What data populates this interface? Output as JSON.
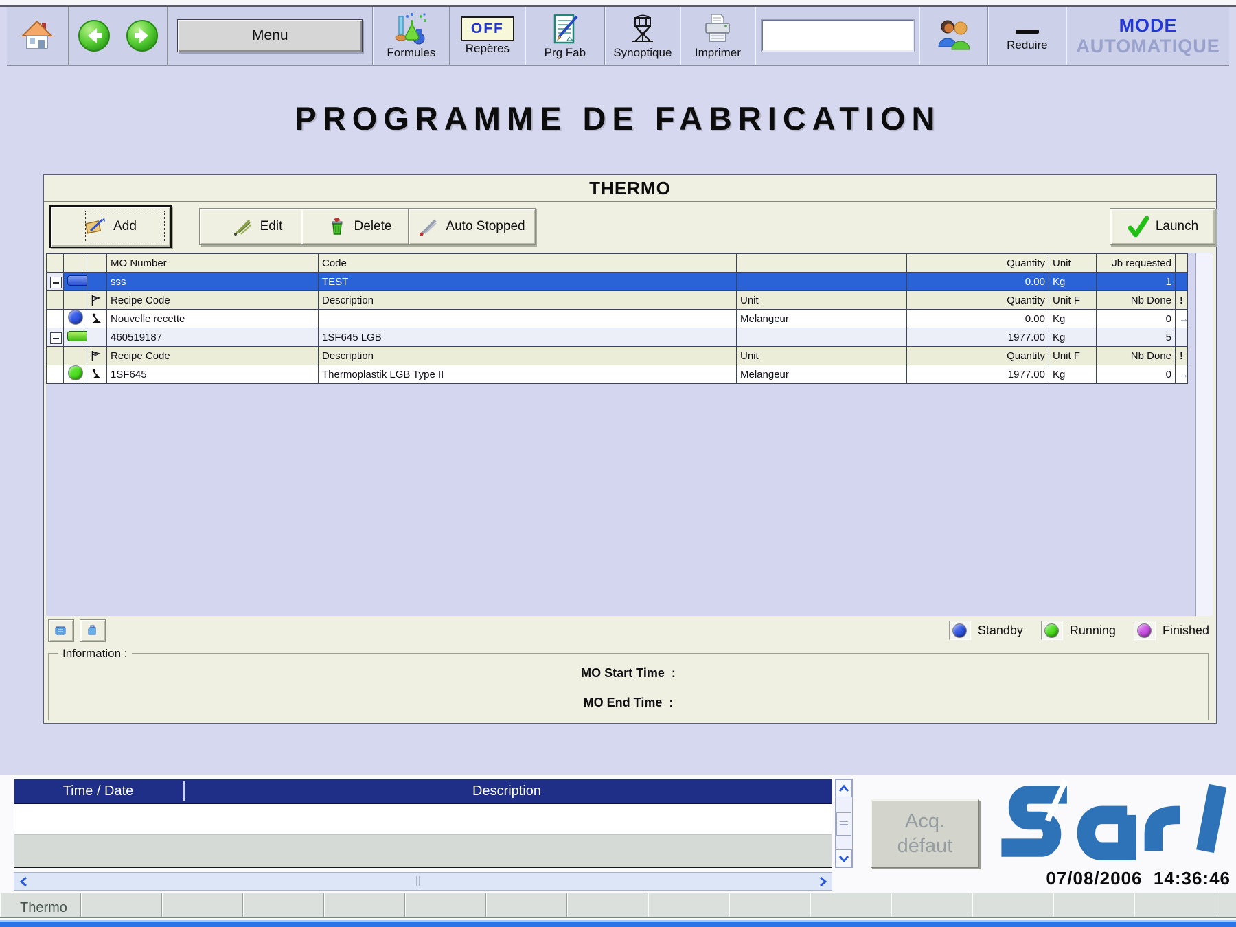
{
  "window": {
    "mode_line1": "MODE",
    "mode_line2": "AUTOMATIQUE"
  },
  "toolbar": {
    "menu_label": "Menu",
    "formules_label": "Formules",
    "reperes_badge": "OFF",
    "reperes_label": "Repères",
    "prgfab_label": "Prg Fab",
    "synoptique_label": "Synoptique",
    "imprimer_label": "Imprimer",
    "reduire_label": "Reduire",
    "search_value": ""
  },
  "page_title": "PROGRAMME DE FABRICATION",
  "panel": {
    "title": "THERMO",
    "buttons": {
      "add": "Add",
      "edit": "Edit",
      "del": "Delete",
      "auto_stopped": "Auto Stopped",
      "launch": "Launch"
    },
    "table": {
      "header": {
        "mo_number": "MO Number",
        "code": "Code",
        "quantity": "Quantity",
        "unit": "Unit",
        "requested": "Jb requested"
      },
      "subheader": {
        "recipe_code": "Recipe Code",
        "description": "Description",
        "unit": "Unit",
        "quantity": "Quantity",
        "unit2": "Unit   F",
        "nb_done": "Nb Done",
        "warn": "!"
      },
      "rows": [
        {
          "type": "mo",
          "selected": true,
          "status": "standby",
          "mo_number": "sss",
          "code": "TEST",
          "quantity": "0.00",
          "unit": "Kg",
          "requested": "1"
        },
        {
          "type": "subheader"
        },
        {
          "type": "recipe",
          "status": "standby",
          "recipe_code": "Nouvelle recette",
          "description": "",
          "unit": "Melangeur",
          "quantity": "0.00",
          "unit_value": "Kg",
          "nb_done": "0",
          "arrow": "↔"
        },
        {
          "type": "mo",
          "selected": false,
          "status": "running",
          "mo_number": "460519187",
          "code": "1SF645 LGB",
          "quantity": "1977.00",
          "unit": "Kg",
          "requested": "5"
        },
        {
          "type": "subheader"
        },
        {
          "type": "recipe",
          "status": "running",
          "recipe_code": "1SF645",
          "description": "Thermoplastik LGB Type II",
          "unit": "Melangeur",
          "quantity": "1977.00",
          "unit_value": "Kg",
          "nb_done": "0",
          "arrow": "↔"
        }
      ]
    },
    "legend": [
      {
        "label": "Standby",
        "color": "#2f55e3"
      },
      {
        "label": "Running",
        "color": "#4ade1d"
      },
      {
        "label": "Finished",
        "color": "#c94fe3"
      }
    ],
    "information": {
      "label": "Information :",
      "start_label": "MO Start Time  :",
      "end_label": "MO End Time  :"
    }
  },
  "alarms": {
    "col_time": "Time / Date",
    "col_desc": "Description"
  },
  "acq_button": {
    "line1": "Acq.",
    "line2": "défaut"
  },
  "logo": {
    "text": "sar",
    "color": "#2e72b8"
  },
  "statusbar": {
    "tab": "Thermo",
    "datetime": "07/08/2006  14:36:46"
  },
  "status_colors": {
    "standby": "#2f55e3",
    "running": "#4ade1d",
    "finished": "#c94fe3"
  },
  "icons": {
    "toolbar": [
      "home",
      "back-arrow",
      "forward-arrow",
      "lab-flasks",
      "off-switch",
      "notepad-pen",
      "silo",
      "printer",
      "users",
      "minimize-dash"
    ],
    "table": [
      "collapse-minus",
      "status-pill",
      "status-circle",
      "filter-flag",
      "operator",
      "exclamation",
      "transfer-arrows"
    ],
    "buttons": [
      "hand-card",
      "quill-pen",
      "trash-can",
      "gray-quill",
      "green-check"
    ]
  }
}
